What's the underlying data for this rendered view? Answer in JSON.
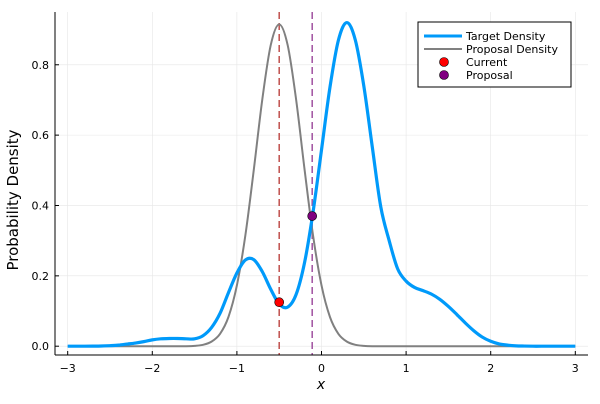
{
  "chart_data": {
    "type": "line",
    "title": "",
    "xlabel": "x",
    "ylabel": "Probability Density",
    "xlim": [
      -3.15,
      3.15
    ],
    "ylim": [
      -0.025,
      0.95
    ],
    "xticks": [
      -3,
      -2,
      -1,
      0,
      1,
      2,
      3
    ],
    "yticks": [
      0.0,
      0.2,
      0.4,
      0.6,
      0.8
    ],
    "xtick_labels": [
      "−3",
      "−2",
      "−1",
      "0",
      "1",
      "2",
      "3"
    ],
    "ytick_labels": [
      "0.0",
      "0.2",
      "0.4",
      "0.6",
      "0.8"
    ],
    "grid": true,
    "legend_position": "top-right",
    "x": [
      -3.0,
      -2.9,
      -2.8,
      -2.7,
      -2.6,
      -2.5,
      -2.4,
      -2.3,
      -2.2,
      -2.1,
      -2.0,
      -1.9,
      -1.8,
      -1.7,
      -1.6,
      -1.5,
      -1.4,
      -1.3,
      -1.2,
      -1.1,
      -1.0,
      -0.9,
      -0.8,
      -0.7,
      -0.6,
      -0.5,
      -0.4,
      -0.3,
      -0.2,
      -0.1,
      0.0,
      0.1,
      0.2,
      0.3,
      0.4,
      0.5,
      0.6,
      0.7,
      0.8,
      0.9,
      1.0,
      1.1,
      1.2,
      1.3,
      1.4,
      1.5,
      1.6,
      1.7,
      1.8,
      1.9,
      2.0,
      2.1,
      2.2,
      2.3,
      2.4,
      2.5,
      2.6,
      2.7,
      2.8,
      2.9,
      3.0
    ],
    "series": [
      {
        "name": "Target Density",
        "color": "#009AFA",
        "values": [
          0,
          0,
          0,
          0.0002,
          0.0006,
          0.0015,
          0.003,
          0.006,
          0.009,
          0.013,
          0.018,
          0.021,
          0.022,
          0.022,
          0.021,
          0.021,
          0.03,
          0.053,
          0.093,
          0.152,
          0.208,
          0.245,
          0.246,
          0.212,
          0.162,
          0.12,
          0.111,
          0.147,
          0.238,
          0.381,
          0.558,
          0.736,
          0.87,
          0.92,
          0.87,
          0.74,
          0.567,
          0.397,
          0.3,
          0.22,
          0.185,
          0.167,
          0.158,
          0.148,
          0.133,
          0.113,
          0.09,
          0.066,
          0.044,
          0.026,
          0.014,
          0.0065,
          0.003,
          0.001,
          0.0004,
          0,
          0,
          0,
          0,
          0,
          0
        ]
      },
      {
        "name": "Proposal Density",
        "color": "#808080",
        "values": [
          0,
          0,
          0,
          0,
          0,
          0,
          0,
          0,
          0,
          0,
          0,
          0,
          0,
          0,
          0,
          0.001,
          0.004,
          0.013,
          0.035,
          0.083,
          0.173,
          0.315,
          0.502,
          0.701,
          0.856,
          0.915,
          0.856,
          0.701,
          0.502,
          0.315,
          0.173,
          0.083,
          0.035,
          0.013,
          0.004,
          0.001,
          0,
          0,
          0,
          0,
          0,
          0,
          0,
          0,
          0,
          0,
          0,
          0,
          0,
          0,
          0,
          0,
          0,
          0,
          0,
          0,
          0,
          0,
          0,
          0,
          0
        ]
      }
    ],
    "points": [
      {
        "name": "Current",
        "x": -0.5,
        "y": 0.125,
        "color": "#FF0000"
      },
      {
        "name": "Proposal",
        "x": -0.11,
        "y": 0.37,
        "color": "#800080"
      }
    ],
    "vlines": [
      {
        "x": -0.5,
        "color": "#C0504D"
      },
      {
        "x": -0.11,
        "color": "#A050A0"
      }
    ]
  }
}
